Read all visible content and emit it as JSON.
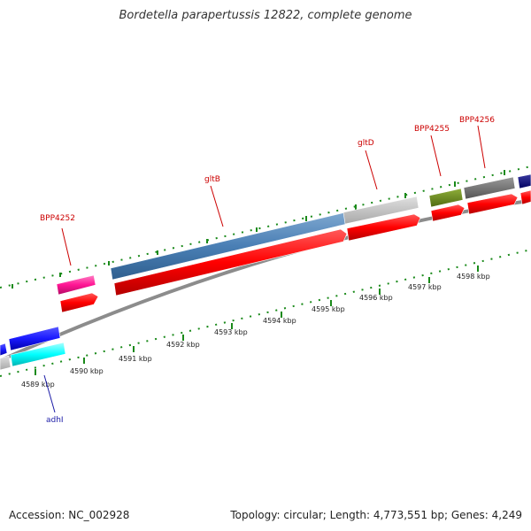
{
  "title": "Bordetella parapertussis 12822, complete genome",
  "footer": {
    "accession": "Accession: NC_002928",
    "summary": "Topology: circular; Length: 4,773,551 bp; Genes: 4,249"
  },
  "colors": {
    "gene_red": "#ff0000",
    "label_red": "#cc0000",
    "label_blue": "#1a1aa6",
    "tick_green": "#1a8a1a",
    "backbone_gray": "#8c8c8c"
  },
  "scale": {
    "labels": [
      "4589 kbp",
      "4590 kbp",
      "4591 kbp",
      "4592 kbp",
      "4593 kbp",
      "4594 kbp",
      "4595 kbp",
      "4596 kbp",
      "4597 kbp",
      "4598 kbp"
    ]
  },
  "gene_labels": [
    {
      "name": "BPP4252",
      "color": "#cc0000"
    },
    {
      "name": "gltB",
      "color": "#cc0000"
    },
    {
      "name": "gltD",
      "color": "#cc0000"
    },
    {
      "name": "BPP4255",
      "color": "#cc0000"
    },
    {
      "name": "BPP4256",
      "color": "#cc0000"
    },
    {
      "name": "adhI",
      "color": "#1a1aa6"
    }
  ]
}
